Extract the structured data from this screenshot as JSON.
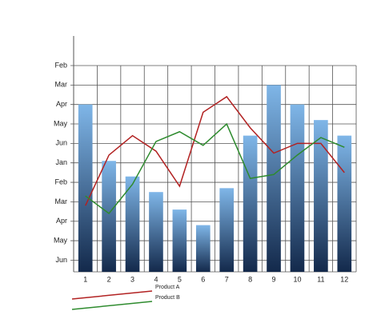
{
  "chart_data": {
    "type": "bar",
    "categories": [
      "1",
      "2",
      "3",
      "4",
      "5",
      "6",
      "7",
      "8",
      "9",
      "10",
      "11",
      "12"
    ],
    "values": [
      8,
      5.1,
      4.3,
      3.5,
      2.6,
      1.8,
      3.7,
      6.4,
      9,
      8,
      7.2,
      6.4
    ],
    "series": [
      {
        "name": "Product A",
        "color": "#b22222",
        "values": [
          2.8,
          5.4,
          6.4,
          5.6,
          3.8,
          7.6,
          8.4,
          6.8,
          5.5,
          6,
          6,
          4.5
        ]
      },
      {
        "name": "Product B",
        "color": "#2e8b2e",
        "values": [
          3.3,
          2.4,
          3.9,
          6.1,
          6.6,
          5.9,
          7,
          4.2,
          4.4,
          5.4,
          6.3,
          5.8
        ]
      }
    ],
    "ylim": [
      -0.6,
      10
    ],
    "yticks": [
      {
        "value": 0,
        "label": "Jun"
      },
      {
        "value": 1,
        "label": "May"
      },
      {
        "value": 2,
        "label": "Apr"
      },
      {
        "value": 3,
        "label": "Mar"
      },
      {
        "value": 4,
        "label": "Feb"
      },
      {
        "value": 5,
        "label": "Jan"
      },
      {
        "value": 6,
        "label": "Jun"
      },
      {
        "value": 7,
        "label": "May"
      },
      {
        "value": 8,
        "label": "Apr"
      },
      {
        "value": 9,
        "label": "Mar"
      },
      {
        "value": 10,
        "label": "Feb"
      }
    ],
    "grid": true
  }
}
